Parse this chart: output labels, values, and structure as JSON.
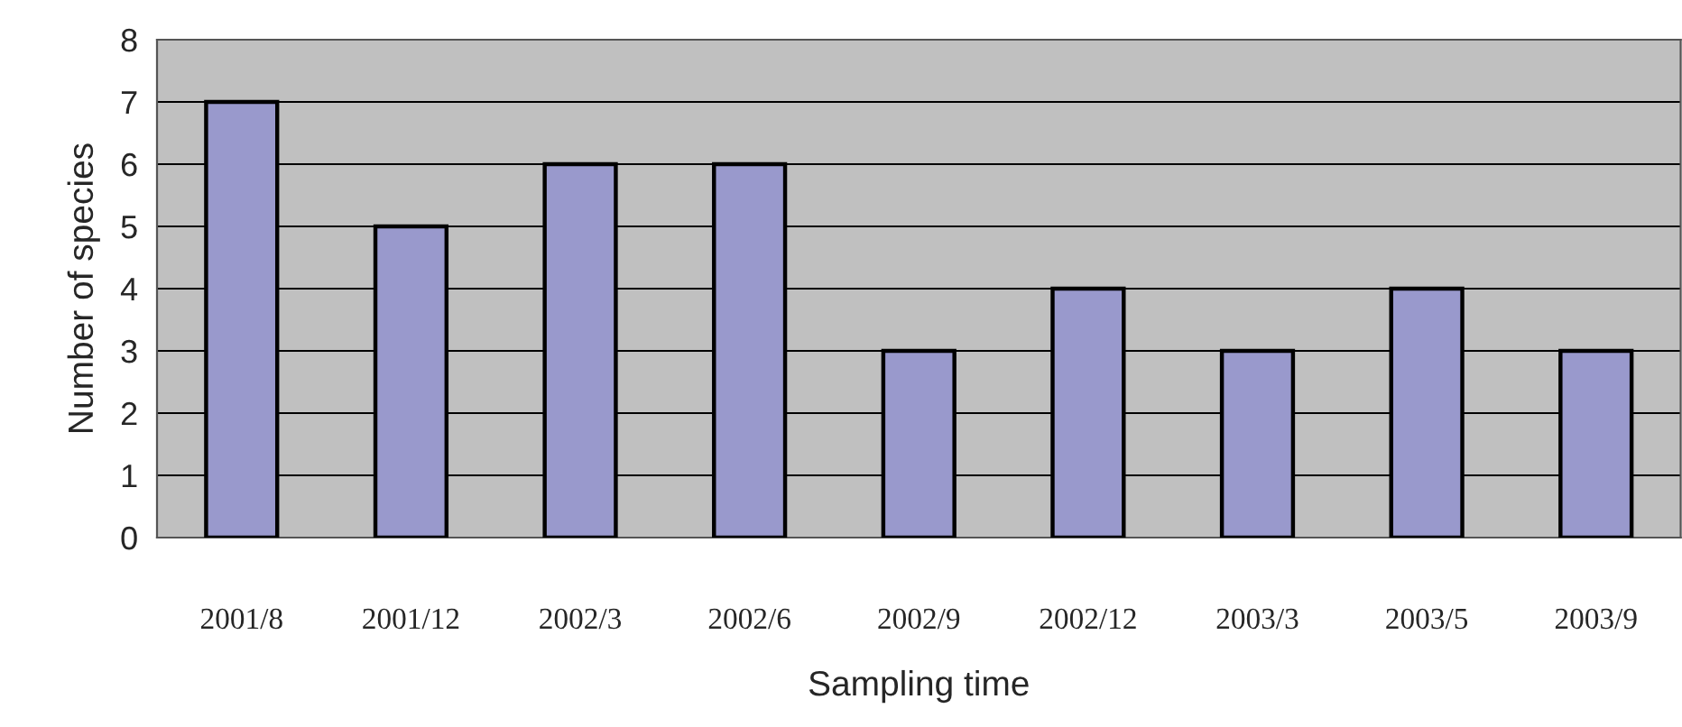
{
  "chart_data": {
    "type": "bar",
    "xlabel": "Sampling time",
    "ylabel": "Number of species",
    "categories": [
      "2001/8",
      "2001/12",
      "2002/3",
      "2002/6",
      "2002/9",
      "2002/12",
      "2003/3",
      "2003/5",
      "2003/9"
    ],
    "values": [
      7,
      5,
      6,
      6,
      3,
      4,
      3,
      4,
      3
    ],
    "color": "#9999cc",
    "ylim": [
      0,
      8
    ],
    "yticks": [
      0,
      1,
      2,
      3,
      4,
      5,
      6,
      7,
      8
    ],
    "grid": "y",
    "legend": false
  }
}
